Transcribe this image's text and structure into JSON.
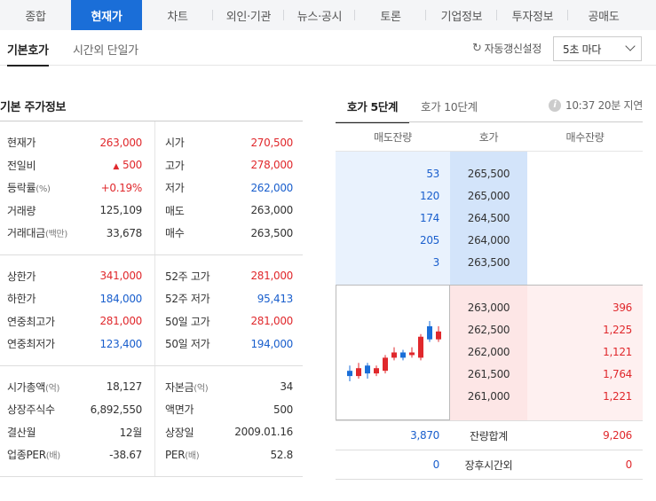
{
  "top_tabs": [
    "종합",
    "현재가",
    "차트",
    "외인·기관",
    "뉴스·공시",
    "토론",
    "기업정보",
    "투자정보",
    "공매도"
  ],
  "sub_tabs": [
    "기본호가",
    "시간외 단일가"
  ],
  "refresh": {
    "label": "자동갱신설정",
    "icon": "refresh-icon"
  },
  "interval_select": {
    "value": "5초 마다"
  },
  "left_title": "기본 주가정보",
  "price_info": {
    "group1": [
      {
        "l1": "현재가",
        "v1": "263,000",
        "c1": "red",
        "l2": "시가",
        "v2": "270,500",
        "c2": "red"
      },
      {
        "l1": "전일비",
        "v1": "500",
        "c1": "red",
        "arrow": "▲",
        "l2": "고가",
        "v2": "278,000",
        "c2": "red"
      },
      {
        "l1": "등락률",
        "l1s": "(%)",
        "v1": "+0.19%",
        "c1": "red",
        "l2": "저가",
        "v2": "262,000",
        "c2": "blue"
      },
      {
        "l1": "거래량",
        "v1": "125,109",
        "c1": "dark",
        "l2": "매도",
        "v2": "263,000",
        "c2": "dark"
      },
      {
        "l1": "거래대금",
        "l1s": "(백만)",
        "v1": "33,678",
        "c1": "dark",
        "l2": "매수",
        "v2": "263,500",
        "c2": "dark"
      }
    ],
    "group2": [
      {
        "l1": "상한가",
        "v1": "341,000",
        "c1": "red",
        "l2": "52주 고가",
        "v2": "281,000",
        "c2": "red"
      },
      {
        "l1": "하한가",
        "v1": "184,000",
        "c1": "blue",
        "l2": "52주 저가",
        "v2": "95,413",
        "c2": "blue"
      },
      {
        "l1": "연중최고가",
        "v1": "281,000",
        "c1": "red",
        "l2": "50일 고가",
        "v2": "281,000",
        "c2": "red"
      },
      {
        "l1": "연중최저가",
        "v1": "123,400",
        "c1": "blue",
        "l2": "50일 저가",
        "v2": "194,000",
        "c2": "blue"
      }
    ],
    "group3": [
      {
        "l1": "시가총액",
        "l1s": "(억)",
        "v1": "18,127",
        "c1": "dark",
        "l2": "자본금",
        "l2s": "(억)",
        "v2": "34",
        "c2": "dark"
      },
      {
        "l1": "상장주식수",
        "v1": "6,892,550",
        "c1": "dark",
        "l2": "액면가",
        "v2": "500",
        "c2": "dark"
      },
      {
        "l1": "결산월",
        "v1": "12월",
        "c1": "dark",
        "l2": "상장일",
        "v2": "2009.01.16",
        "c2": "dark"
      },
      {
        "l1": "업종PER",
        "l1s": "(배)",
        "v1": "-38.67",
        "c1": "dark",
        "l2": "PER",
        "l2s": "(배)",
        "v2": "52.8",
        "c2": "dark"
      }
    ]
  },
  "orderbook_tabs": [
    "호가 5단계",
    "호가 10단계"
  ],
  "delay_text": "10:37 20분 지연",
  "orderbook": {
    "headers": [
      "매도잔량",
      "호가",
      "매수잔량"
    ],
    "asks": [
      {
        "qty": "53",
        "price": "265,500"
      },
      {
        "qty": "120",
        "price": "265,000"
      },
      {
        "qty": "174",
        "price": "264,500"
      },
      {
        "qty": "205",
        "price": "264,000"
      },
      {
        "qty": "3",
        "price": "263,500"
      }
    ],
    "bids": [
      {
        "price": "263,000",
        "qty": "396"
      },
      {
        "price": "262,500",
        "qty": "1,225"
      },
      {
        "price": "262,000",
        "qty": "1,121"
      },
      {
        "price": "261,500",
        "qty": "1,764"
      },
      {
        "price": "261,000",
        "qty": "1,221"
      }
    ],
    "total": {
      "ask": "3,870",
      "label": "잔량합계",
      "bid": "9,206"
    },
    "after_hours": {
      "ask": "0",
      "label": "장후시간외",
      "bid": "0"
    }
  },
  "mini_chart": {
    "candles": [
      {
        "o": 263,
        "c": 261,
        "h": 265,
        "l": 259
      },
      {
        "o": 261,
        "c": 264,
        "h": 266,
        "l": 260
      },
      {
        "o": 265,
        "c": 262,
        "h": 266,
        "l": 260
      },
      {
        "o": 262,
        "c": 264,
        "h": 265,
        "l": 261
      },
      {
        "o": 263,
        "c": 268,
        "h": 269,
        "l": 262
      },
      {
        "o": 268,
        "c": 270,
        "h": 272,
        "l": 267
      },
      {
        "o": 270,
        "c": 268,
        "h": 271,
        "l": 267
      },
      {
        "o": 269,
        "c": 270,
        "h": 272,
        "l": 268
      },
      {
        "o": 268,
        "c": 276,
        "h": 277,
        "l": 267
      },
      {
        "o": 280,
        "c": 275,
        "h": 282,
        "l": 274
      },
      {
        "o": 275,
        "c": 278,
        "h": 280,
        "l": 274
      }
    ],
    "colors": {
      "up": "#e0282c",
      "down": "#1a6ed8"
    }
  }
}
